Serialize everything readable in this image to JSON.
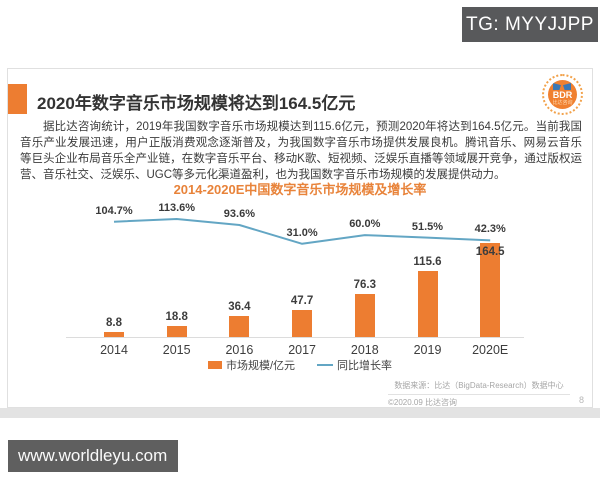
{
  "overlay": {
    "tg_badge": "TG: MYYJJPP",
    "watermark": "www.worldleyu.com"
  },
  "slide": {
    "title": "2020年数字音乐市场规模将达到164.5亿元",
    "logo": {
      "text": "BDR",
      "subtext": "比达咨询"
    },
    "body_text": "据比达咨询统计，2019年我国数字音乐市场规模达到115.6亿元，预测2020年将达到164.5亿元。当前我国音乐产业发展迅速，用户正版消费观念逐渐普及，为我国数字音乐市场提供发展良机。腾讯音乐、网易云音乐等巨头企业布局音乐全产业链，在数字音乐平台、移动K歌、短视频、泛娱乐直播等领域展开竞争，通过版权运营、音乐社交、泛娱乐、UGC等多元化渠道盈利，也为我国数字音乐市场规模的发展提供动力。",
    "footer": {
      "source": "数据来源：比达（BigData-Research）数据中心",
      "copyright": "©2020.09 比达咨询",
      "page_number": "8"
    }
  },
  "chart_data": {
    "type": "bar",
    "title": "2014-2020E中国数字音乐市场规模及增长率",
    "categories": [
      "2014",
      "2015",
      "2016",
      "2017",
      "2018",
      "2019",
      "2020E"
    ],
    "series": [
      {
        "name": "市场规模/亿元",
        "type": "bar",
        "color": "#ED7D31",
        "values": [
          8.8,
          18.8,
          36.4,
          47.7,
          76.3,
          115.6,
          164.5
        ],
        "value_labels": [
          "8.8",
          "18.8",
          "36.4",
          "47.7",
          "76.3",
          "115.6",
          "164.5"
        ]
      },
      {
        "name": "同比增长率",
        "type": "line",
        "color": "#63A6C4",
        "values": [
          104.7,
          113.6,
          93.6,
          31.0,
          60.0,
          51.5,
          42.3
        ],
        "value_labels": [
          "104.7%",
          "113.6%",
          "93.6%",
          "31.0%",
          "60.0%",
          "51.5%",
          "42.3%"
        ]
      }
    ],
    "legend": [
      "市场规模/亿元",
      "同比增长率"
    ],
    "legend_position": "bottom",
    "grid": false
  },
  "colors": {
    "accent_orange": "#ED7D31",
    "chart_title_orange": "#E8833A",
    "line_blue": "#63A6C4",
    "badge_gray": "#58595B"
  }
}
